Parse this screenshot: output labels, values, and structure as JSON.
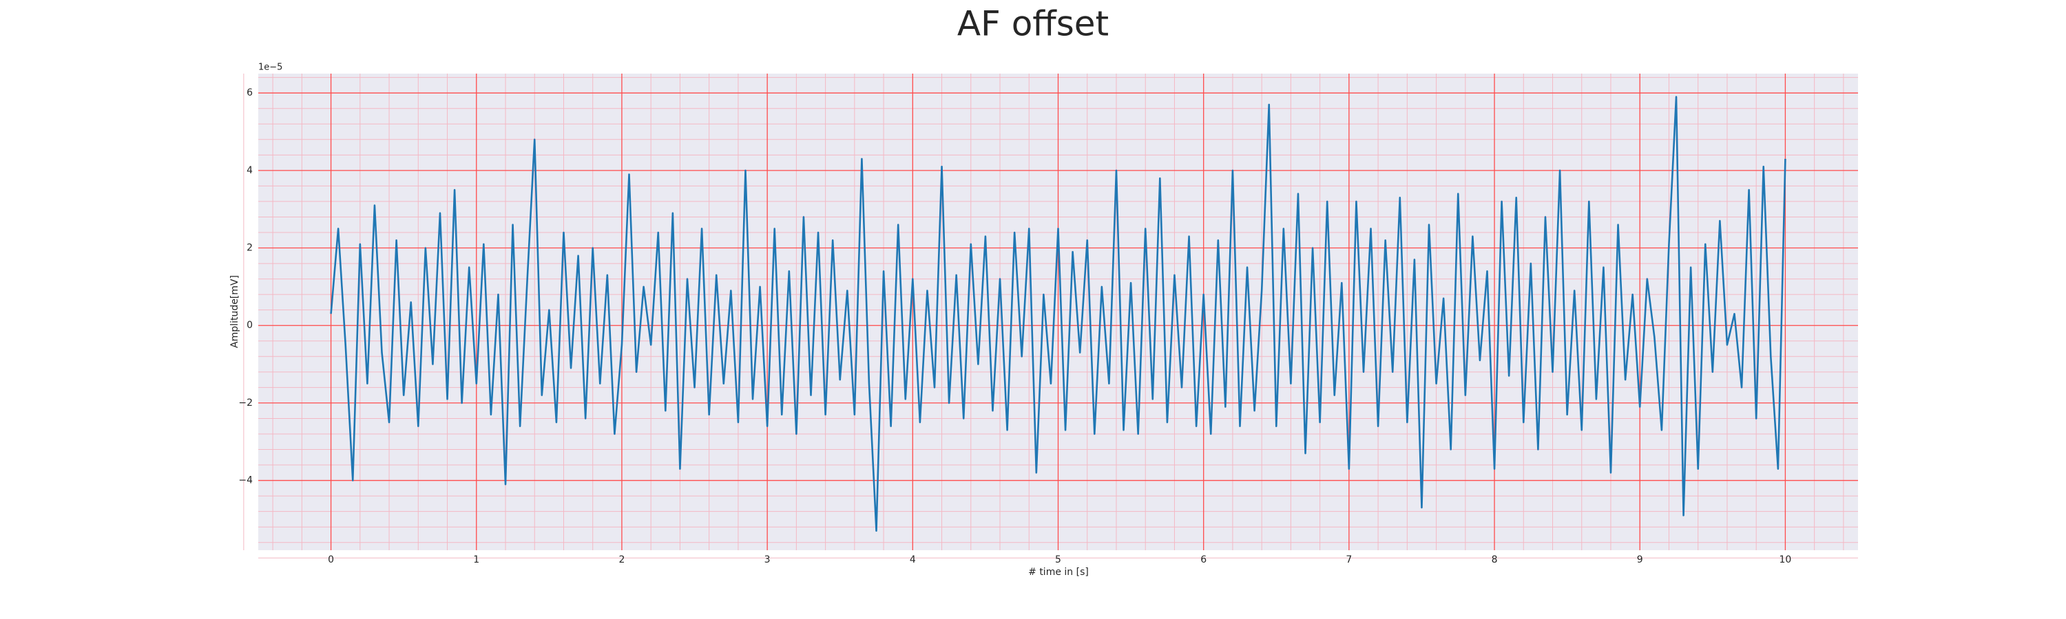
{
  "chart_data": {
    "type": "line",
    "title": "AF offset",
    "xlabel": "# time in [s]",
    "ylabel": "Amplitude[mV]",
    "y_offset_label": "1e−5",
    "color": "#1f77b4",
    "grid": true,
    "grid_color": "#ff4d4d",
    "minor_grid": true,
    "minor_grid_color": "#f4b8c4",
    "minor_divisions": 5,
    "background": "#eaeaf2",
    "xlim": [
      -0.5,
      10.5
    ],
    "ylim": [
      -5.8,
      6.5
    ],
    "xticks": [
      0,
      1,
      2,
      3,
      4,
      5,
      6,
      7,
      8,
      9,
      10
    ],
    "yticks": [
      {
        "value": -4,
        "label": "−4"
      },
      {
        "value": -2,
        "label": "−2"
      },
      0,
      2,
      4,
      6
    ],
    "x": [
      0,
      0.05,
      0.1,
      0.15,
      0.2,
      0.25,
      0.3,
      0.35,
      0.4,
      0.45,
      0.5,
      0.55,
      0.6,
      0.65,
      0.7,
      0.75,
      0.8,
      0.85,
      0.9,
      0.95,
      1,
      1.05,
      1.1,
      1.15,
      1.2,
      1.25,
      1.3,
      1.35,
      1.4,
      1.45,
      1.5,
      1.55,
      1.6,
      1.65,
      1.7,
      1.75,
      1.8,
      1.85,
      1.9,
      1.95,
      2,
      2.05,
      2.1,
      2.15,
      2.2,
      2.25,
      2.3,
      2.35,
      2.4,
      2.45,
      2.5,
      2.55,
      2.6,
      2.65,
      2.7,
      2.75,
      2.8,
      2.85,
      2.9,
      2.95,
      3,
      3.05,
      3.1,
      3.15,
      3.2,
      3.25,
      3.3,
      3.35,
      3.4,
      3.45,
      3.5,
      3.55,
      3.6,
      3.65,
      3.7,
      3.75,
      3.8,
      3.85,
      3.9,
      3.95,
      4,
      4.05,
      4.1,
      4.15,
      4.2,
      4.25,
      4.3,
      4.35,
      4.4,
      4.45,
      4.5,
      4.55,
      4.6,
      4.65,
      4.7,
      4.75,
      4.8,
      4.85,
      4.9,
      4.95,
      5,
      5.05,
      5.1,
      5.15,
      5.2,
      5.25,
      5.3,
      5.35,
      5.4,
      5.45,
      5.5,
      5.55,
      5.6,
      5.65,
      5.7,
      5.75,
      5.8,
      5.85,
      5.9,
      5.95,
      6,
      6.05,
      6.1,
      6.15,
      6.2,
      6.25,
      6.3,
      6.35,
      6.4,
      6.45,
      6.5,
      6.55,
      6.6,
      6.65,
      6.7,
      6.75,
      6.8,
      6.85,
      6.9,
      6.95,
      7,
      7.05,
      7.1,
      7.15,
      7.2,
      7.25,
      7.3,
      7.35,
      7.4,
      7.45,
      7.5,
      7.55,
      7.6,
      7.65,
      7.7,
      7.75,
      7.8,
      7.85,
      7.9,
      7.95,
      8,
      8.05,
      8.1,
      8.15,
      8.2,
      8.25,
      8.3,
      8.35,
      8.4,
      8.45,
      8.5,
      8.55,
      8.6,
      8.65,
      8.7,
      8.75,
      8.8,
      8.85,
      8.9,
      8.95,
      9,
      9.05,
      9.1,
      9.15,
      9.2,
      9.25,
      9.3,
      9.35,
      9.4,
      9.45,
      9.5,
      9.55,
      9.6,
      9.65,
      9.7,
      9.75,
      9.8,
      9.85,
      9.9,
      9.95,
      10
    ],
    "values": [
      0.3,
      2.5,
      -0.5,
      -4.0,
      2.1,
      -1.5,
      3.1,
      -0.7,
      -2.5,
      2.2,
      -1.8,
      0.6,
      -2.6,
      2.0,
      -1.0,
      2.9,
      -1.9,
      3.5,
      -2.0,
      1.5,
      -1.5,
      2.1,
      -2.3,
      0.8,
      -4.1,
      2.6,
      -2.6,
      1.2,
      4.8,
      -1.8,
      0.4,
      -2.5,
      2.4,
      -1.1,
      1.8,
      -2.4,
      2.0,
      -1.5,
      1.3,
      -2.8,
      -0.5,
      3.9,
      -1.2,
      1.0,
      -0.5,
      2.4,
      -2.2,
      2.9,
      -3.7,
      1.2,
      -1.6,
      2.5,
      -2.3,
      1.3,
      -1.5,
      0.9,
      -2.5,
      4.0,
      -1.9,
      1.0,
      -2.6,
      2.5,
      -2.3,
      1.4,
      -2.8,
      2.8,
      -1.8,
      2.4,
      -2.3,
      2.2,
      -1.4,
      0.9,
      -2.3,
      4.3,
      -1.5,
      -5.3,
      1.4,
      -2.6,
      2.6,
      -1.9,
      1.2,
      -2.5,
      0.9,
      -1.6,
      4.1,
      -2.0,
      1.3,
      -2.4,
      2.1,
      -1.0,
      2.3,
      -2.2,
      1.2,
      -2.7,
      2.4,
      -0.8,
      2.5,
      -3.8,
      0.8,
      -1.5,
      2.5,
      -2.7,
      1.9,
      -0.7,
      2.2,
      -2.8,
      1.0,
      -1.5,
      4.0,
      -2.7,
      1.1,
      -2.8,
      2.5,
      -1.9,
      3.8,
      -2.5,
      1.3,
      -1.6,
      2.3,
      -2.6,
      0.8,
      -2.8,
      2.2,
      -2.1,
      4.0,
      -2.6,
      1.5,
      -2.2,
      0.9,
      5.7,
      -2.6,
      2.5,
      -1.5,
      3.4,
      -3.3,
      2.0,
      -2.5,
      3.2,
      -1.8,
      1.1,
      -3.7,
      3.2,
      -1.2,
      2.5,
      -2.6,
      2.2,
      -1.2,
      3.3,
      -2.5,
      1.7,
      -4.7,
      2.6,
      -1.5,
      0.7,
      -3.2,
      3.4,
      -1.8,
      2.3,
      -0.9,
      1.4,
      -3.7,
      3.2,
      -1.3,
      3.3,
      -2.5,
      1.6,
      -3.2,
      2.8,
      -1.2,
      4.0,
      -2.3,
      0.9,
      -2.7,
      3.2,
      -1.9,
      1.5,
      -3.8,
      2.6,
      -1.4,
      0.8,
      -2.1,
      1.2,
      -0.3,
      -2.7,
      2.1,
      5.9,
      -4.9,
      1.5,
      -3.7,
      2.1,
      -1.2,
      2.7,
      -0.5,
      0.3,
      -1.6,
      3.5,
      -2.4,
      4.1,
      -0.8,
      -3.7,
      4.3
    ]
  }
}
